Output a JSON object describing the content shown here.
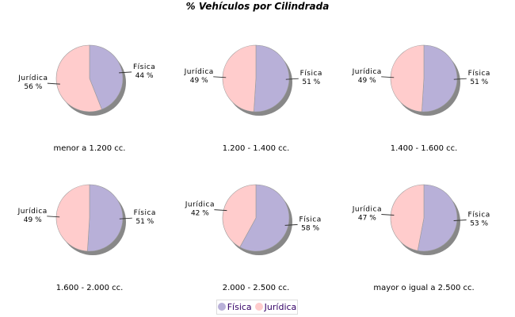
{
  "chart_data": {
    "type": "pie",
    "title": "% Vehículos por Cilindrada",
    "legend": [
      "Física",
      "Jurídica"
    ],
    "legend_placement": "bottom",
    "colors": {
      "Física": "#b8b0d8",
      "Jurídica": "#ffcccc"
    },
    "pies": [
      {
        "category": "menor a 1.200 cc.",
        "values": {
          "Física": 44,
          "Jurídica": 56
        },
        "labels": [
          "44 %",
          "56 %"
        ]
      },
      {
        "category": "1.200 - 1.400 cc.",
        "values": {
          "Física": 51,
          "Jurídica": 49
        },
        "labels": [
          "51 %",
          "49 %"
        ]
      },
      {
        "category": "1.400 - 1.600 cc.",
        "values": {
          "Física": 51,
          "Jurídica": 49
        },
        "labels": [
          "51 %",
          "49 %"
        ]
      },
      {
        "category": "1.600 - 2.000 cc.",
        "values": {
          "Física": 51,
          "Jurídica": 49
        },
        "labels": [
          "51 %",
          "49 %"
        ]
      },
      {
        "category": "2.000 - 2.500 cc.",
        "values": {
          "Física": 58,
          "Jurídica": 42
        },
        "labels": [
          "58 %",
          "42 %"
        ]
      },
      {
        "category": "mayor o igual a 2.500 cc.",
        "values": {
          "Física": 53,
          "Jurídica": 47
        },
        "labels": [
          "53 %",
          "47 %"
        ]
      }
    ]
  }
}
